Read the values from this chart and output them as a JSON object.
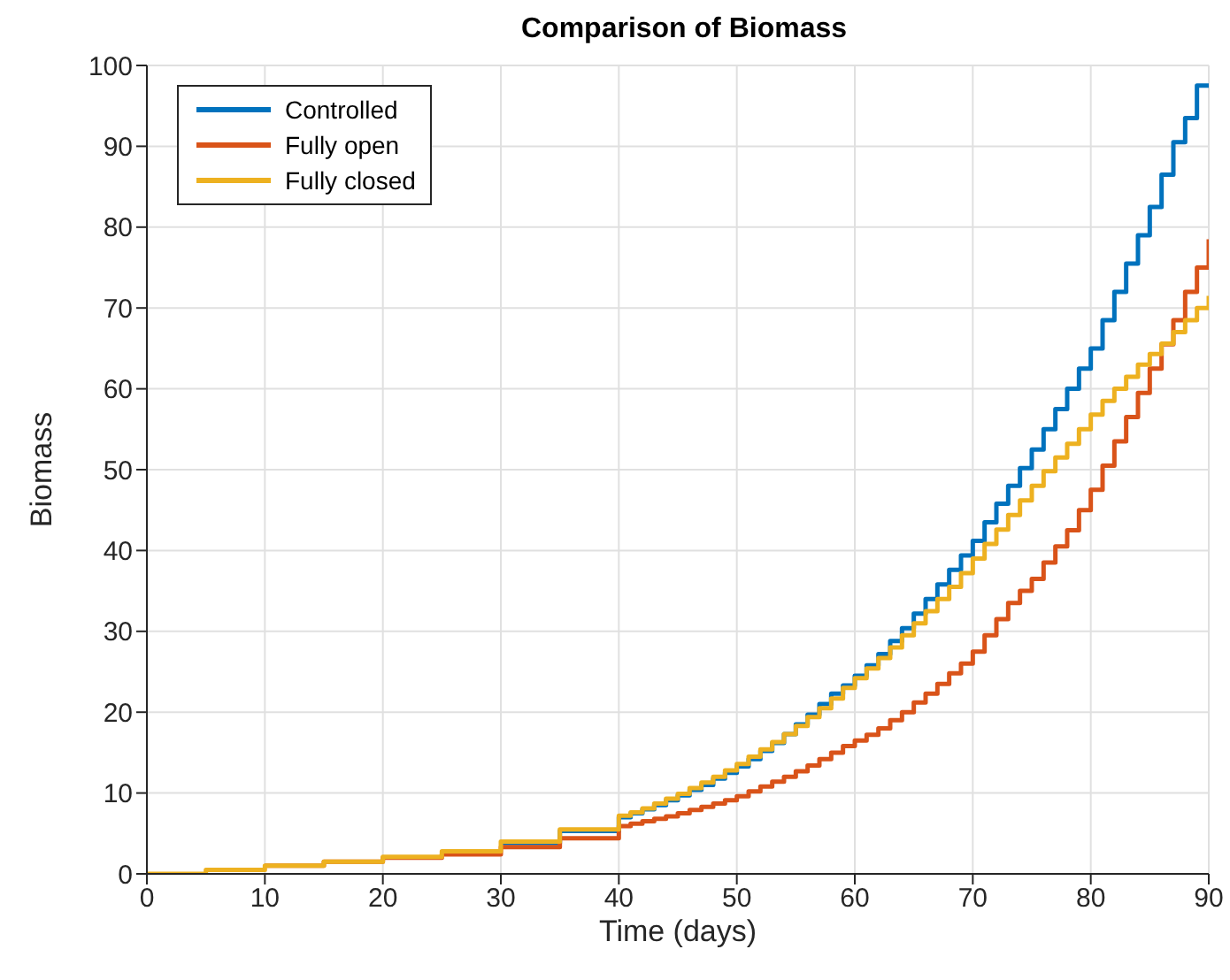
{
  "chart_data": {
    "type": "step",
    "title": "Comparison of Biomass",
    "xlabel": "Time (days)",
    "ylabel": "Biomass",
    "x": [
      0,
      5,
      10,
      15,
      20,
      25,
      30,
      35,
      40,
      41,
      42,
      43,
      44,
      45,
      46,
      47,
      48,
      49,
      50,
      51,
      52,
      53,
      54,
      55,
      56,
      57,
      58,
      59,
      60,
      61,
      62,
      63,
      64,
      65,
      66,
      67,
      68,
      69,
      70,
      71,
      72,
      73,
      74,
      75,
      76,
      77,
      78,
      79,
      80,
      81,
      82,
      83,
      84,
      85,
      86,
      87,
      88,
      89,
      90
    ],
    "series": [
      {
        "name": "Controlled",
        "color": "#0072bd",
        "values": [
          null,
          null,
          null,
          null,
          null,
          null,
          3.8,
          5.3,
          7,
          7.5,
          8,
          8.5,
          9.1,
          9.7,
          10.4,
          11,
          11.8,
          12.5,
          13.3,
          14.2,
          15.2,
          16.2,
          17.3,
          18.5,
          19.7,
          21,
          22.3,
          23.3,
          24.5,
          25.8,
          27.2,
          28.8,
          30.4,
          32.2,
          34,
          35.8,
          37.6,
          39.4,
          41.2,
          43.5,
          45.8,
          48,
          50.2,
          52.5,
          55,
          57.5,
          60,
          62.5,
          65,
          68.5,
          72,
          75.5,
          79,
          82.5,
          86.5,
          90.5,
          93.5,
          97.5,
          97.5
        ]
      },
      {
        "name": "Fully open",
        "color": "#d95319",
        "values": [
          null,
          null,
          1,
          1.5,
          2,
          2.4,
          3.3,
          4.4,
          5.9,
          6.2,
          6.5,
          6.8,
          7.1,
          7.5,
          7.9,
          8.3,
          8.7,
          9.1,
          9.6,
          10.2,
          10.8,
          11.4,
          12,
          12.7,
          13.4,
          14.2,
          15,
          15.8,
          16.5,
          17.2,
          18,
          19,
          20,
          21.2,
          22.3,
          23.5,
          24.8,
          26,
          27.5,
          29.5,
          31.5,
          33.5,
          35,
          36.5,
          38.5,
          40.5,
          42.5,
          45,
          47.5,
          50.5,
          53.5,
          56.5,
          59.5,
          62.5,
          65.5,
          68.5,
          72,
          75,
          78.5
        ]
      },
      {
        "name": "Fully closed",
        "color": "#edb120",
        "values": [
          0,
          0.5,
          1,
          1.5,
          2.1,
          2.8,
          4,
          5.5,
          7.2,
          7.6,
          8.1,
          8.7,
          9.3,
          9.9,
          10.6,
          11.3,
          12,
          12.8,
          13.6,
          14.5,
          15.4,
          16.3,
          17.3,
          18.3,
          19.4,
          20.5,
          21.7,
          23,
          24.2,
          25.4,
          26.7,
          28,
          29.5,
          31,
          32.5,
          34,
          35.5,
          37.2,
          39,
          40.8,
          42.6,
          44.4,
          46.2,
          48,
          49.8,
          51.5,
          53.2,
          55,
          56.8,
          58.5,
          60,
          61.5,
          63,
          64.3,
          65.6,
          67,
          68.5,
          70,
          71.5
        ]
      }
    ],
    "xlim": [
      0,
      90
    ],
    "xticks": [
      0,
      10,
      20,
      30,
      40,
      50,
      60,
      70,
      80,
      90
    ],
    "ylim": [
      0,
      100
    ],
    "yticks": [
      0,
      10,
      20,
      30,
      40,
      50,
      60,
      70,
      80,
      90,
      100
    ],
    "grid": true,
    "legend": "top left"
  }
}
